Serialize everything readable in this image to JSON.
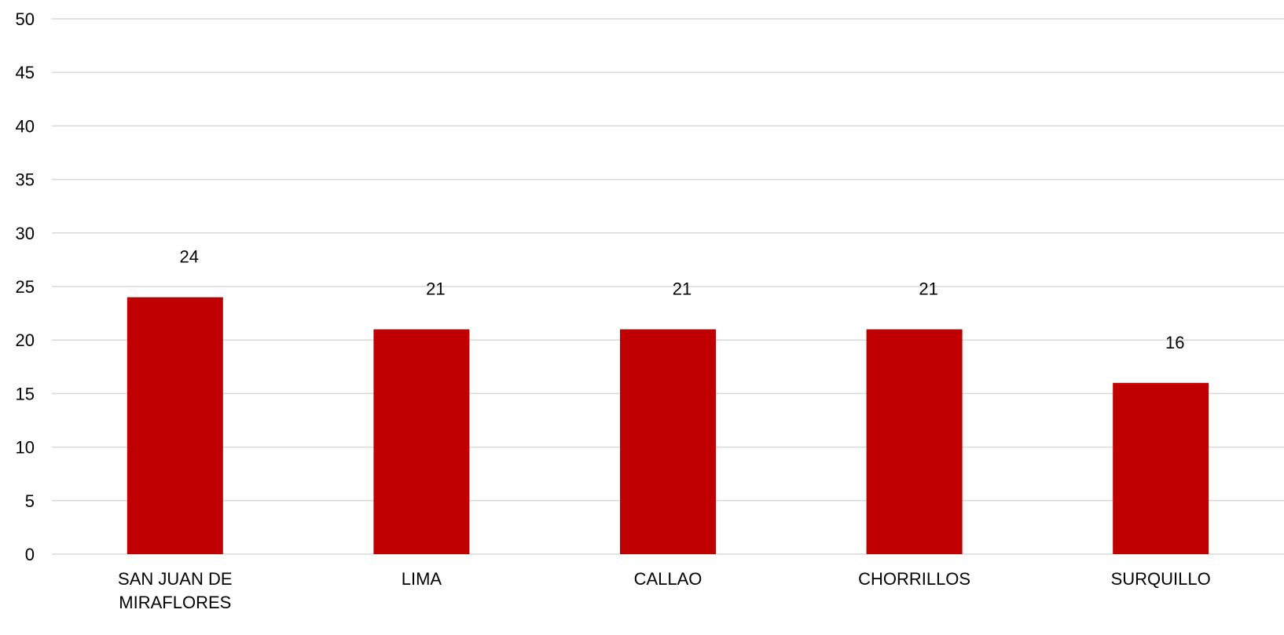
{
  "chart_data": {
    "type": "bar",
    "categories": [
      "SAN JUAN DE MIRAFLORES",
      "LIMA",
      "CALLAO",
      "CHORRILLOS",
      "SURQUILLO"
    ],
    "category_lines": [
      [
        "SAN JUAN DE",
        "MIRAFLORES"
      ],
      [
        "LIMA"
      ],
      [
        "CALLAO"
      ],
      [
        "CHORRILLOS"
      ],
      [
        "SURQUILLO"
      ]
    ],
    "values": [
      24,
      21,
      21,
      21,
      16
    ],
    "data_labels": [
      "24",
      "21",
      "21",
      "21",
      "16"
    ],
    "yticks": [
      "0",
      "5",
      "10",
      "15",
      "20",
      "25",
      "30",
      "35",
      "40",
      "45",
      "50"
    ],
    "ylim": [
      0,
      50
    ],
    "grid": true,
    "legend": "none",
    "title": "",
    "xlabel": "",
    "ylabel": "",
    "colors": {
      "bar": "#c00000",
      "grid": "#d9d9d9",
      "text": "#000000"
    }
  }
}
